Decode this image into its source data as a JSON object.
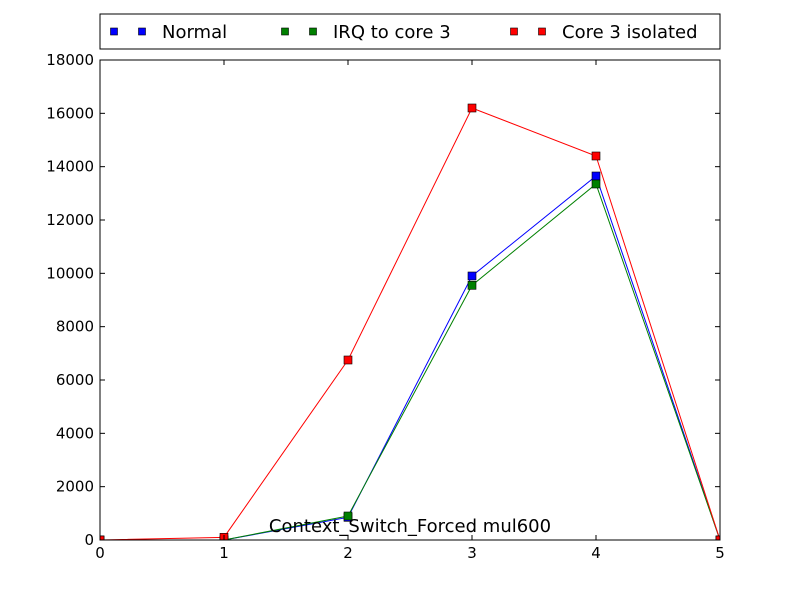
{
  "chart_data": {
    "type": "line",
    "title": "Context_Switch_Forced mul600",
    "xlabel": "",
    "ylabel": "",
    "xlim": [
      0,
      5
    ],
    "ylim": [
      0,
      18000
    ],
    "x_ticks": [
      0,
      1,
      2,
      3,
      4,
      5
    ],
    "y_ticks": [
      0,
      2000,
      4000,
      6000,
      8000,
      10000,
      12000,
      14000,
      16000,
      18000
    ],
    "grid": false,
    "legend_position": "top",
    "series": [
      {
        "name": "Normal",
        "color": "#0000ff",
        "marker": "square",
        "x": [
          0,
          1,
          2,
          3,
          4,
          5
        ],
        "y": [
          0,
          0,
          850,
          9900,
          13650,
          0
        ]
      },
      {
        "name": "IRQ to core 3",
        "color": "#008000",
        "marker": "square",
        "x": [
          0,
          1,
          2,
          3,
          4,
          5
        ],
        "y": [
          0,
          0,
          900,
          9550,
          13350,
          0
        ]
      },
      {
        "name": "Core 3 isolated",
        "color": "#ff0000",
        "marker": "square",
        "x": [
          0,
          1,
          2,
          3,
          4,
          5
        ],
        "y": [
          0,
          100,
          6750,
          16200,
          14400,
          0
        ]
      }
    ]
  }
}
